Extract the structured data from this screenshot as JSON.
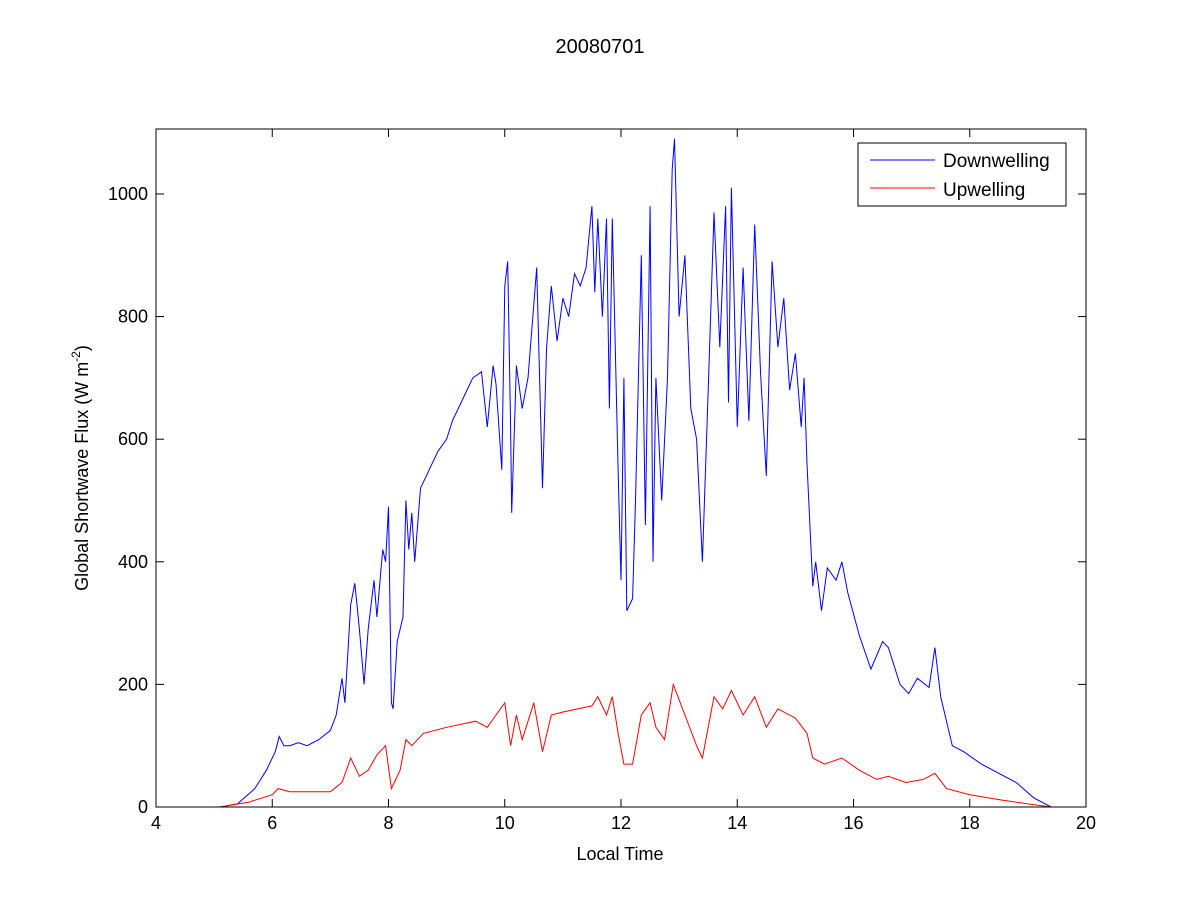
{
  "chart_data": {
    "type": "line",
    "title": "20080701",
    "xlabel": "Local Time",
    "ylabel": "Global Shortwave Flux (W m",
    "ylabel_sup": "-2",
    "ylabel_end": ")",
    "xlim": [
      4,
      20
    ],
    "ylim": [
      0,
      1106
    ],
    "xticks": [
      4,
      6,
      8,
      10,
      12,
      14,
      16,
      18,
      20
    ],
    "yticks": [
      0,
      200,
      400,
      600,
      800,
      1000
    ],
    "grid": false,
    "legend_position": "top-right",
    "series": [
      {
        "name": "Downwelling",
        "color": "#0000ff",
        "x": [
          5.1,
          5.4,
          5.7,
          5.9,
          6.05,
          6.12,
          6.2,
          6.3,
          6.45,
          6.6,
          6.8,
          7.0,
          7.1,
          7.2,
          7.25,
          7.35,
          7.42,
          7.5,
          7.58,
          7.65,
          7.75,
          7.8,
          7.9,
          7.95,
          8.0,
          8.05,
          8.08,
          8.15,
          8.25,
          8.3,
          8.35,
          8.4,
          8.45,
          8.55,
          8.7,
          8.85,
          9.0,
          9.1,
          9.25,
          9.35,
          9.45,
          9.6,
          9.7,
          9.8,
          9.85,
          9.95,
          10.0,
          10.05,
          10.1,
          10.12,
          10.2,
          10.3,
          10.4,
          10.55,
          10.65,
          10.72,
          10.8,
          10.9,
          11.0,
          11.1,
          11.2,
          11.3,
          11.4,
          11.5,
          11.55,
          11.6,
          11.68,
          11.75,
          11.8,
          11.85,
          11.95,
          12.0,
          12.05,
          12.1,
          12.2,
          12.25,
          12.35,
          12.42,
          12.5,
          12.55,
          12.6,
          12.7,
          12.8,
          12.88,
          12.92,
          13.0,
          13.1,
          13.2,
          13.3,
          13.4,
          13.5,
          13.6,
          13.7,
          13.8,
          13.85,
          13.9,
          14.0,
          14.1,
          14.2,
          14.3,
          14.4,
          14.5,
          14.6,
          14.7,
          14.8,
          14.9,
          15.0,
          15.1,
          15.15,
          15.2,
          15.3,
          15.35,
          15.45,
          15.55,
          15.7,
          15.8,
          15.9,
          16.1,
          16.3,
          16.5,
          16.6,
          16.8,
          16.95,
          17.1,
          17.3,
          17.4,
          17.5,
          17.7,
          17.9,
          18.2,
          18.5,
          18.8,
          19.1,
          19.4
        ],
        "y": [
          0,
          5,
          30,
          60,
          90,
          115,
          100,
          100,
          105,
          100,
          110,
          125,
          150,
          210,
          170,
          330,
          365,
          290,
          200,
          290,
          370,
          310,
          420,
          400,
          490,
          170,
          160,
          270,
          310,
          500,
          420,
          480,
          400,
          520,
          550,
          580,
          600,
          630,
          660,
          680,
          700,
          710,
          620,
          720,
          690,
          550,
          850,
          890,
          620,
          480,
          720,
          650,
          700,
          880,
          520,
          750,
          850,
          760,
          830,
          800,
          870,
          850,
          880,
          980,
          840,
          960,
          800,
          960,
          650,
          960,
          550,
          370,
          700,
          320,
          340,
          500,
          900,
          460,
          980,
          400,
          700,
          500,
          700,
          1040,
          1090,
          800,
          900,
          650,
          600,
          400,
          680,
          970,
          750,
          980,
          660,
          1010,
          620,
          880,
          630,
          950,
          710,
          540,
          890,
          750,
          830,
          680,
          740,
          620,
          700,
          560,
          360,
          400,
          320,
          390,
          370,
          400,
          350,
          280,
          225,
          270,
          260,
          200,
          185,
          210,
          195,
          260,
          180,
          100,
          90,
          70,
          55,
          40,
          15,
          0
        ]
      },
      {
        "name": "Upwelling",
        "color": "#ff0000",
        "x": [
          5.1,
          5.6,
          6.0,
          6.1,
          6.3,
          7.0,
          7.2,
          7.35,
          7.5,
          7.65,
          7.8,
          7.95,
          8.05,
          8.2,
          8.3,
          8.4,
          8.6,
          9.0,
          9.5,
          9.7,
          9.85,
          10.0,
          10.1,
          10.2,
          10.3,
          10.5,
          10.65,
          10.8,
          11.0,
          11.5,
          11.6,
          11.75,
          11.85,
          11.95,
          12.05,
          12.2,
          12.35,
          12.5,
          12.6,
          12.75,
          12.9,
          13.1,
          13.3,
          13.4,
          13.6,
          13.75,
          13.9,
          14.1,
          14.3,
          14.5,
          14.7,
          15.0,
          15.2,
          15.3,
          15.5,
          15.8,
          16.1,
          16.4,
          16.6,
          16.9,
          17.2,
          17.4,
          17.6,
          18.0,
          18.5,
          19.0,
          19.4
        ],
        "y": [
          0,
          8,
          20,
          30,
          25,
          25,
          40,
          80,
          50,
          60,
          85,
          100,
          30,
          60,
          110,
          100,
          120,
          130,
          140,
          130,
          150,
          170,
          100,
          150,
          110,
          170,
          90,
          150,
          155,
          165,
          180,
          150,
          180,
          120,
          70,
          70,
          150,
          170,
          130,
          110,
          200,
          150,
          100,
          80,
          180,
          160,
          190,
          150,
          180,
          130,
          160,
          145,
          120,
          80,
          70,
          80,
          60,
          45,
          50,
          40,
          45,
          55,
          30,
          20,
          12,
          5,
          0
        ]
      }
    ]
  }
}
